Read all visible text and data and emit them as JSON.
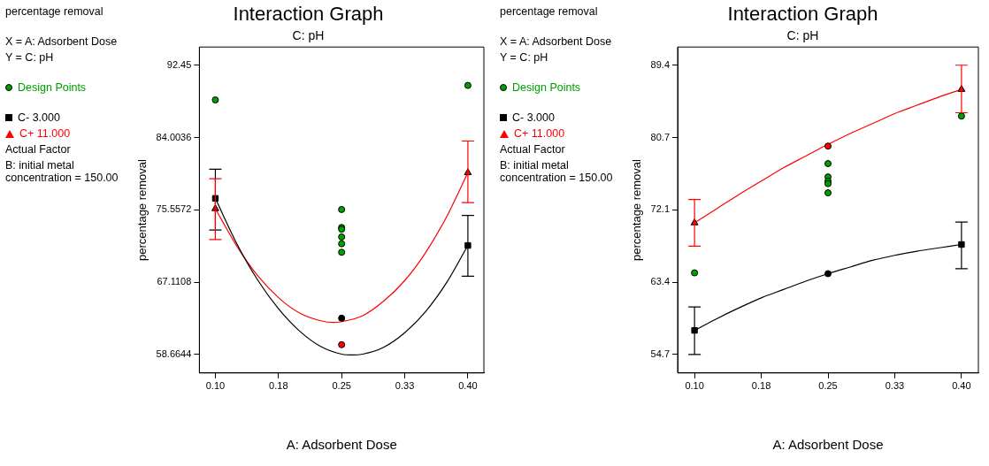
{
  "chart_data": [
    {
      "type": "scatter",
      "title": "Interaction Graph",
      "subtitle": "C: pH",
      "xlabel": "A: Adsorbent Dose",
      "ylabel": "percentage removal",
      "legend": "left",
      "grid": false,
      "annotations": [
        "percentage removal",
        "X = A: Adsorbent Dose",
        "Y = C: pH",
        "Actual Factor",
        "B: initial metal concentration = 150.00"
      ],
      "xlim": [
        0.081,
        0.419
      ],
      "xticks": [
        {
          "value": 0.1,
          "label": "0.10"
        },
        {
          "value": 0.175,
          "label": "0.18"
        },
        {
          "value": 0.25,
          "label": "0.25"
        },
        {
          "value": 0.325,
          "label": "0.33"
        },
        {
          "value": 0.4,
          "label": "0.40"
        }
      ],
      "ylim": [
        56.5,
        94.58
      ],
      "yticks": [
        58.6644,
        67.1108,
        75.5572,
        84.0036,
        92.45
      ],
      "series": [
        {
          "name": "Design Points",
          "marker": "circle",
          "color": "#00a000",
          "x": [
            0.1,
            0.4,
            0.25,
            0.25,
            0.25,
            0.25,
            0.25,
            0.25,
            0.25,
            0.25
          ],
          "values": [
            88.4,
            90.1,
            75.6,
            73.5,
            73.3,
            72.4,
            71.6,
            70.6,
            62.9,
            59.8
          ],
          "colors": [
            "#00a000",
            "#00a000",
            "#00a000",
            "#00a000",
            "#00a000",
            "#00a000",
            "#00a000",
            "#00a000",
            "#000000",
            "#ff0000"
          ]
        },
        {
          "type": "line",
          "marker": "none",
          "color": "#000000",
          "x": [
            0.1,
            0.125,
            0.15,
            0.175,
            0.2,
            0.225,
            0.25,
            0.2635,
            0.275,
            0.3,
            0.325,
            0.35,
            0.375,
            0.4
          ],
          "values": [
            76.9,
            71.7,
            67.4,
            64,
            61.4,
            59.6,
            58.7,
            58.6,
            58.7,
            59.5,
            61.2,
            63.7,
            67.1,
            71.4
          ]
        },
        {
          "type": "line",
          "marker": "none",
          "color": "#ff0000",
          "x": [
            0.1,
            0.125,
            0.15,
            0.175,
            0.2,
            0.225,
            0.24,
            0.25,
            0.275,
            0.3,
            0.325,
            0.35,
            0.375,
            0.4
          ],
          "values": [
            75.7,
            71.4,
            67.9,
            65.3,
            63.5,
            62.6,
            62.4,
            62.5,
            63.2,
            64.9,
            67.3,
            70.6,
            74.8,
            79.9
          ]
        },
        {
          "name": "C- 3.000",
          "marker": "square",
          "color": "#000000",
          "x": [
            0.1,
            0.4
          ],
          "values": [
            76.9,
            71.4
          ],
          "errors": [
            [
              73.2,
              80.3
            ],
            [
              67.8,
              74.9
            ]
          ]
        },
        {
          "name": "C+ 11.000",
          "marker": "triangle",
          "color": "#ff0000",
          "x": [
            0.1,
            0.4
          ],
          "values": [
            75.7,
            79.9
          ],
          "errors": [
            [
              72.1,
              79.2
            ],
            [
              76.4,
              83.6
            ]
          ]
        }
      ]
    },
    {
      "type": "scatter",
      "title": "Interaction Graph",
      "subtitle": "C: pH",
      "xlabel": "A: Adsorbent Dose",
      "ylabel": "percentage removal",
      "legend": "left",
      "grid": false,
      "annotations": [
        "percentage removal",
        "X = A: Adsorbent Dose",
        "Y = C: pH",
        "Actual Factor",
        "B: initial metal concentration = 150.00"
      ],
      "xlim": [
        0.081,
        0.419
      ],
      "xticks": [
        {
          "value": 0.1,
          "label": "0.10"
        },
        {
          "value": 0.175,
          "label": "0.18"
        },
        {
          "value": 0.25,
          "label": "0.25"
        },
        {
          "value": 0.325,
          "label": "0.33"
        },
        {
          "value": 0.4,
          "label": "0.40"
        }
      ],
      "ylim": [
        52.49,
        91.58
      ],
      "yticks": [
        54.7,
        {
          "value": 63.375,
          "label": "63.4"
        },
        {
          "value": 72.05,
          "label": "72.1"
        },
        {
          "value": 80.725,
          "label": "80.7"
        },
        89.4
      ],
      "series": [
        {
          "name": "Design Points",
          "marker": "circle",
          "color": "#00a000",
          "x": [
            0.1,
            0.4,
            0.25,
            0.25,
            0.25,
            0.25,
            0.25,
            0.25,
            0.25
          ],
          "values": [
            64.5,
            83.3,
            77.6,
            76,
            75.5,
            75.2,
            74.1,
            79.7,
            64.4
          ],
          "colors": [
            "#00a000",
            "#00a000",
            "#00a000",
            "#00a000",
            "#00a000",
            "#00a000",
            "#00a000",
            "#ff0000",
            "#000000"
          ]
        },
        {
          "type": "line",
          "marker": "none",
          "color": "#000000",
          "x": [
            0.1,
            0.125,
            0.15,
            0.175,
            0.2,
            0.225,
            0.25,
            0.275,
            0.3,
            0.325,
            0.35,
            0.375,
            0.4
          ],
          "values": [
            57.6,
            59,
            60.3,
            61.5,
            62.5,
            63.5,
            64.4,
            65.2,
            66,
            66.6,
            67.1,
            67.5,
            67.9
          ]
        },
        {
          "type": "line",
          "marker": "none",
          "color": "#ff0000",
          "x": [
            0.1,
            0.125,
            0.15,
            0.175,
            0.2,
            0.225,
            0.25,
            0.275,
            0.3,
            0.325,
            0.35,
            0.375,
            0.4
          ],
          "values": [
            70.5,
            72.2,
            73.9,
            75.5,
            77.1,
            78.5,
            79.9,
            81.2,
            82.4,
            83.6,
            84.6,
            85.6,
            86.5
          ]
        },
        {
          "name": "C- 3.000",
          "marker": "square",
          "color": "#000000",
          "x": [
            0.1,
            0.4
          ],
          "values": [
            57.6,
            67.9
          ],
          "errors": [
            [
              54.7,
              60.4
            ],
            [
              65,
              70.6
            ]
          ]
        },
        {
          "name": "C+ 11.000",
          "marker": "triangle",
          "color": "#ff0000",
          "x": [
            0.1,
            0.4
          ],
          "values": [
            70.5,
            86.5
          ],
          "errors": [
            [
              67.7,
              73.3
            ],
            [
              83.7,
              89.4
            ]
          ]
        }
      ]
    }
  ]
}
